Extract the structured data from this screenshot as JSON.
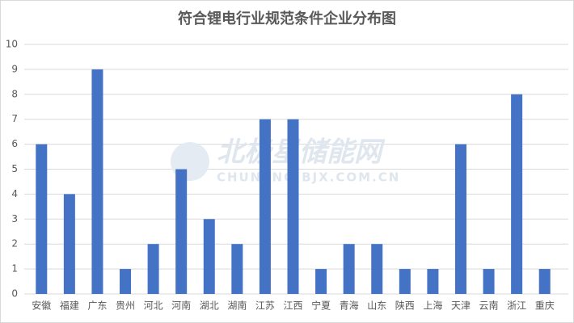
{
  "chart_data": {
    "type": "bar",
    "title": "符合锂电行业规范条件企业分布图",
    "watermark": "北极星储能网",
    "watermark_url": "CHUNENG.BJX.COM.CN",
    "categories": [
      "安徽",
      "福建",
      "广东",
      "贵州",
      "河北",
      "河南",
      "湖北",
      "湖南",
      "江苏",
      "江西",
      "宁夏",
      "青海",
      "山东",
      "陕西",
      "上海",
      "天津",
      "云南",
      "浙江",
      "重庆"
    ],
    "values": [
      6,
      4,
      9,
      1,
      2,
      5,
      3,
      2,
      7,
      7,
      1,
      2,
      2,
      1,
      1,
      6,
      1,
      8,
      1
    ],
    "color": "#4472c4",
    "ylim": [
      0,
      10
    ],
    "yticks": [
      0,
      1,
      2,
      3,
      4,
      5,
      6,
      7,
      8,
      9,
      10
    ],
    "grid": true
  }
}
